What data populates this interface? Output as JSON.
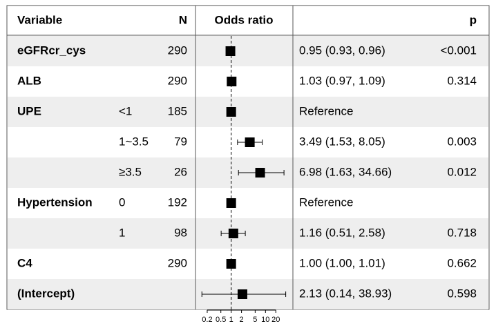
{
  "chart_data": {
    "type": "forest",
    "headers": {
      "variable": "Variable",
      "n": "N",
      "estimate": "Odds ratio",
      "p": "p"
    },
    "variables": [
      "eGFRcr_cys",
      "ALB",
      "UPE",
      null,
      null,
      "Hypertension",
      null,
      "C4",
      "(Intercept)"
    ],
    "levels": [
      null,
      null,
      "<1",
      "1~3.5",
      "≥3.5",
      "0",
      "1",
      null,
      null
    ],
    "n": [
      290,
      290,
      185,
      79,
      26,
      192,
      98,
      290,
      null
    ],
    "values": [
      0.95,
      1.03,
      1,
      3.49,
      6.98,
      1,
      1.16,
      1.0,
      2.13
    ],
    "lower": [
      0.93,
      0.97,
      null,
      1.53,
      1.63,
      null,
      0.51,
      1.0,
      0.14
    ],
    "upper": [
      0.96,
      1.09,
      null,
      8.05,
      34.66,
      null,
      2.58,
      1.01,
      38.93
    ],
    "value_labels": [
      "0.95 (0.93, 0.96)",
      "1.03 (0.97, 1.09)",
      "Reference",
      "3.49 (1.53, 8.05)",
      "6.98 (1.63, 34.66)",
      "Reference",
      "1.16 (0.51, 2.58)",
      "1.00 (1.00, 1.01)",
      "2.13 (0.14, 38.93)"
    ],
    "p": [
      "<0.001",
      "0.314",
      null,
      "0.003",
      "0.012",
      null,
      "0.718",
      "0.662",
      "0.598"
    ],
    "xscale": "log",
    "xlim": [
      0.1,
      63
    ],
    "xticks": [
      0.2,
      0.5,
      1,
      2,
      5,
      10,
      20
    ],
    "reference_line": 1,
    "color": "#000000",
    "stripe_color": "#eeeeee"
  }
}
